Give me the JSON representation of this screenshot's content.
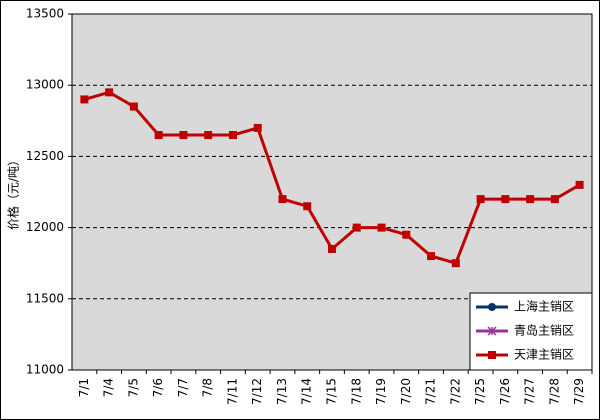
{
  "chart_data": {
    "type": "line",
    "y_label": "价格（元/吨）",
    "categories": [
      "7/1",
      "7/4",
      "7/5",
      "7/6",
      "7/7",
      "7/8",
      "7/11",
      "7/12",
      "7/13",
      "7/14",
      "7/15",
      "7/18",
      "7/19",
      "7/20",
      "7/21",
      "7/22",
      "7/25",
      "7/26",
      "7/27",
      "7/28",
      "7/29"
    ],
    "series": [
      {
        "name": "上海主销区",
        "color": "#003366",
        "marker": "circle",
        "values": [
          null,
          null,
          null,
          null,
          null,
          null,
          null,
          null,
          null,
          null,
          null,
          null,
          null,
          null,
          null,
          null,
          null,
          null,
          null,
          null,
          null
        ]
      },
      {
        "name": "青岛主销区",
        "color": "#993399",
        "marker": "x",
        "values": [
          null,
          null,
          null,
          null,
          null,
          null,
          null,
          null,
          null,
          null,
          null,
          null,
          null,
          null,
          null,
          null,
          null,
          null,
          null,
          null,
          null
        ]
      },
      {
        "name": "天津主销区",
        "color": "#c00000",
        "marker": "square",
        "values": [
          12900,
          12950,
          12850,
          12650,
          12650,
          12650,
          12650,
          12700,
          12200,
          12150,
          11850,
          12000,
          12000,
          11950,
          11800,
          11750,
          12200,
          12200,
          12200,
          12200,
          12300
        ]
      }
    ],
    "ylim": [
      11000,
      13500
    ],
    "yticks": [
      11000,
      11500,
      12000,
      12500,
      13000,
      13500
    ],
    "grid": true,
    "legend": "lower right"
  }
}
